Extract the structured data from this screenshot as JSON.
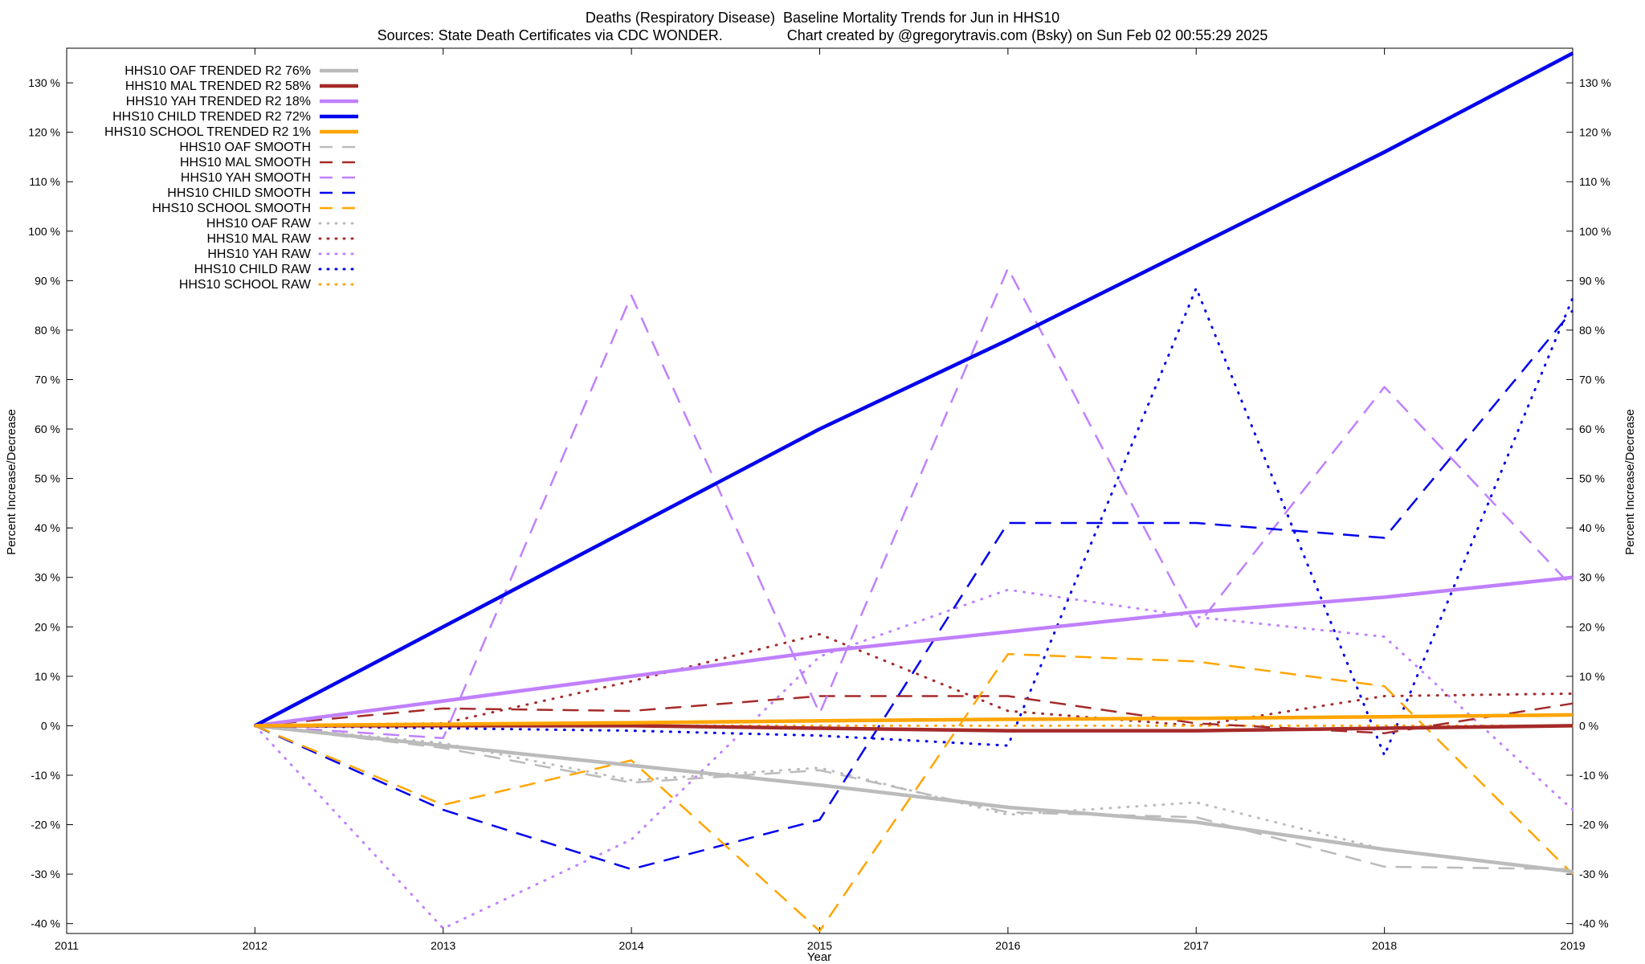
{
  "header": {
    "title": "Deaths (Respiratory Disease)  Baseline Mortality Trends for Jun in HHS10",
    "subtitle": "Sources: State Death Certificates via CDC WONDER.                Chart created by @gregorytravis.com (Bsky) on Sun Feb 02 00:55:29 2025"
  },
  "chart_data": {
    "type": "line",
    "title": "Deaths (Respiratory Disease)  Baseline Mortality Trends for Jun in HHS10",
    "xlabel": "Year",
    "ylabel": "Percent Increase/Decrease",
    "y2label": "Percent Increase/Decrease",
    "xlim": [
      2011,
      2019
    ],
    "ylim": [
      -42,
      137
    ],
    "x_ticks": [
      "2011",
      "2012",
      "2013",
      "2014",
      "2015",
      "2016",
      "2017",
      "2018",
      "2019"
    ],
    "y_ticks": [
      "-40 %",
      "-30 %",
      "-20 %",
      "-10 %",
      "0 %",
      "10 %",
      "20 %",
      "30 %",
      "40 %",
      "50 %",
      "60 %",
      "70 %",
      "80 %",
      "90 %",
      "100 %",
      "110 %",
      "120 %",
      "130 %"
    ],
    "grid": false,
    "legend_position": "top-left",
    "series": [
      {
        "name": "HHS10 OAF TRENDED R2  76%",
        "style": "trended",
        "color": "#bbbbbb",
        "x": [
          2012,
          2013,
          2014,
          2015,
          2016,
          2017,
          2018,
          2019
        ],
        "values": [
          0,
          -4,
          -8,
          -12,
          -16.5,
          -19.5,
          -25,
          -29.5
        ]
      },
      {
        "name": "HHS10 MAL TRENDED R2  58%",
        "style": "trended",
        "color": "#a52a2a",
        "x": [
          2012,
          2013,
          2014,
          2015,
          2016,
          2017,
          2018,
          2019
        ],
        "values": [
          0,
          0,
          0,
          -0.5,
          -1,
          -1,
          -0.5,
          0
        ]
      },
      {
        "name": "HHS10 YAH TRENDED R2  18%",
        "style": "trended",
        "color": "#c080ff",
        "x": [
          2012,
          2013,
          2014,
          2015,
          2016,
          2017,
          2018,
          2019
        ],
        "values": [
          0,
          5,
          10,
          15,
          19,
          23,
          26,
          30
        ]
      },
      {
        "name": "HHS10 CHILD TRENDED R2  72%",
        "style": "trended",
        "color": "#0000ee",
        "x": [
          2012,
          2013,
          2014,
          2015,
          2016,
          2017,
          2018,
          2019
        ],
        "values": [
          0,
          20,
          40,
          60,
          78,
          97,
          116,
          136
        ]
      },
      {
        "name": "HHS10 SCHOOL TRENDED R2  1%",
        "style": "trended",
        "color": "#ffa500",
        "x": [
          2012,
          2013,
          2014,
          2015,
          2016,
          2017,
          2018,
          2019
        ],
        "values": [
          0,
          0.3,
          0.6,
          1,
          1.3,
          1.5,
          1.8,
          2.2
        ]
      },
      {
        "name": "HHS10 OAF SMOOTH",
        "style": "smooth",
        "color": "#bbbbbb",
        "x": [
          2012,
          2013,
          2014,
          2015,
          2016,
          2017,
          2018,
          2019
        ],
        "values": [
          0,
          -4.5,
          -11.5,
          -9,
          -17.5,
          -18.5,
          -28.5,
          -29
        ]
      },
      {
        "name": "HHS10 MAL SMOOTH",
        "style": "smooth",
        "color": "#a52a2a",
        "x": [
          2012,
          2013,
          2014,
          2015,
          2016,
          2017,
          2018,
          2019
        ],
        "values": [
          0,
          3.5,
          3,
          6,
          6,
          0.5,
          -1.5,
          4.5
        ]
      },
      {
        "name": "HHS10 YAH SMOOTH",
        "style": "smooth",
        "color": "#c080ff",
        "x": [
          2012,
          2013,
          2014,
          2015,
          2016,
          2017,
          2018,
          2019
        ],
        "values": [
          0,
          -2.5,
          87,
          2.5,
          92.5,
          20,
          68.5,
          28
        ]
      },
      {
        "name": "HHS10 CHILD SMOOTH",
        "style": "smooth",
        "color": "#0000ee",
        "x": [
          2012,
          2013,
          2014,
          2015,
          2016,
          2017,
          2018,
          2019
        ],
        "values": [
          0,
          -17,
          -29,
          -19,
          41,
          41,
          38,
          84
        ]
      },
      {
        "name": "HHS10 SCHOOL SMOOTH",
        "style": "smooth",
        "color": "#ffa500",
        "x": [
          2012,
          2013,
          2014,
          2015,
          2016,
          2017,
          2018,
          2019
        ],
        "values": [
          0,
          -16,
          -7,
          -41.5,
          14.5,
          13,
          8,
          -30
        ]
      },
      {
        "name": "HHS10 OAF RAW",
        "style": "raw",
        "color": "#bbbbbb",
        "x": [
          2012,
          2013,
          2014,
          2015,
          2016,
          2017,
          2018,
          2019
        ],
        "values": [
          0,
          -3.5,
          -11,
          -8.5,
          -18,
          -15.5,
          -25,
          -29.5
        ]
      },
      {
        "name": "HHS10 MAL RAW",
        "style": "raw",
        "color": "#a52a2a",
        "x": [
          2012,
          2013,
          2014,
          2015,
          2016,
          2017,
          2018,
          2019
        ],
        "values": [
          0,
          0.5,
          9,
          18.5,
          3,
          0,
          6,
          6.5
        ]
      },
      {
        "name": "HHS10 YAH RAW",
        "style": "raw",
        "color": "#c080ff",
        "x": [
          2012,
          2013,
          2014,
          2015,
          2016,
          2017,
          2018,
          2019
        ],
        "values": [
          0,
          -41,
          -23,
          14,
          27.5,
          22,
          18,
          -17
        ]
      },
      {
        "name": "HHS10 CHILD RAW",
        "style": "raw",
        "color": "#0000ee",
        "x": [
          2012,
          2013,
          2014,
          2015,
          2016,
          2017,
          2018,
          2019
        ],
        "values": [
          0,
          -0.5,
          -1,
          -2,
          -4,
          88.5,
          -6,
          86.5
        ]
      },
      {
        "name": "HHS10 SCHOOL RAW",
        "style": "raw",
        "color": "#ffa500",
        "x": [
          2012,
          2013,
          2014,
          2015,
          2016,
          2017,
          2018,
          2019
        ],
        "values": [
          0,
          0,
          0,
          0,
          0,
          0,
          0,
          0
        ]
      }
    ]
  }
}
